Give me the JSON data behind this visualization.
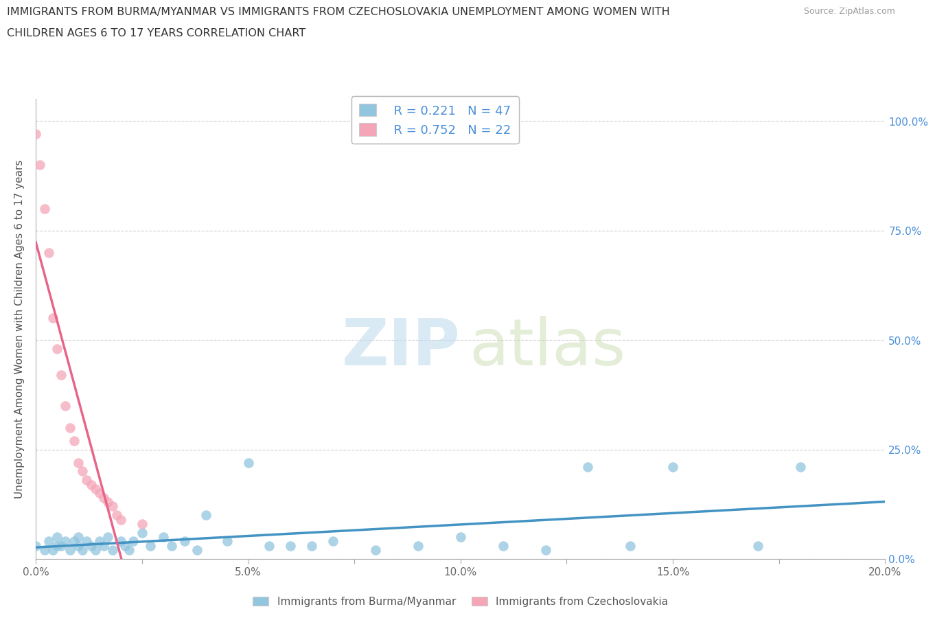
{
  "title_line1": "IMMIGRANTS FROM BURMA/MYANMAR VS IMMIGRANTS FROM CZECHOSLOVAKIA UNEMPLOYMENT AMONG WOMEN WITH",
  "title_line2": "CHILDREN AGES 6 TO 17 YEARS CORRELATION CHART",
  "source": "Source: ZipAtlas.com",
  "ylabel": "Unemployment Among Women with Children Ages 6 to 17 years",
  "xlim": [
    0.0,
    0.2
  ],
  "ylim": [
    -0.02,
    1.05
  ],
  "legend_r1": "R = 0.221",
  "legend_n1": "N = 47",
  "legend_r2": "R = 0.752",
  "legend_n2": "N = 22",
  "color_burma": "#92C5DE",
  "color_czech": "#F4A6B8",
  "color_burma_line": "#4393C3",
  "color_czech_line": "#E8658A",
  "color_czech_line_dashed": "#E8658A",
  "background_color": "#FFFFFF",
  "grid_color": "#D0D0D0",
  "right_tick_color": "#4A90D9",
  "burma_x": [
    0.0,
    0.002,
    0.003,
    0.004,
    0.005,
    0.005,
    0.006,
    0.007,
    0.008,
    0.009,
    0.01,
    0.01,
    0.011,
    0.012,
    0.013,
    0.014,
    0.015,
    0.016,
    0.017,
    0.018,
    0.02,
    0.021,
    0.022,
    0.023,
    0.025,
    0.027,
    0.03,
    0.032,
    0.035,
    0.038,
    0.04,
    0.045,
    0.05,
    0.055,
    0.06,
    0.065,
    0.07,
    0.08,
    0.09,
    0.1,
    0.11,
    0.12,
    0.13,
    0.14,
    0.15,
    0.17,
    0.18
  ],
  "burma_y": [
    0.03,
    0.02,
    0.04,
    0.02,
    0.03,
    0.05,
    0.03,
    0.04,
    0.02,
    0.04,
    0.03,
    0.05,
    0.02,
    0.04,
    0.03,
    0.02,
    0.04,
    0.03,
    0.05,
    0.02,
    0.04,
    0.03,
    0.02,
    0.04,
    0.06,
    0.03,
    0.05,
    0.03,
    0.04,
    0.02,
    0.1,
    0.04,
    0.22,
    0.03,
    0.03,
    0.03,
    0.04,
    0.02,
    0.03,
    0.05,
    0.03,
    0.02,
    0.21,
    0.03,
    0.21,
    0.03,
    0.21
  ],
  "czech_x": [
    0.0,
    0.001,
    0.002,
    0.003,
    0.004,
    0.005,
    0.006,
    0.007,
    0.008,
    0.009,
    0.01,
    0.011,
    0.012,
    0.013,
    0.014,
    0.015,
    0.016,
    0.017,
    0.018,
    0.019,
    0.02,
    0.025
  ],
  "czech_y": [
    0.97,
    0.9,
    0.8,
    0.7,
    0.55,
    0.48,
    0.42,
    0.35,
    0.3,
    0.27,
    0.22,
    0.2,
    0.18,
    0.17,
    0.16,
    0.15,
    0.14,
    0.13,
    0.12,
    0.1,
    0.09,
    0.08
  ],
  "xtick_positions": [
    0.0,
    0.025,
    0.05,
    0.075,
    0.1,
    0.125,
    0.15,
    0.175,
    0.2
  ],
  "xtick_labels": [
    "0.0%",
    "",
    "5.0%",
    "",
    "10.0%",
    "",
    "15.0%",
    "",
    "20.0%"
  ],
  "ytick_positions": [
    0.0,
    0.25,
    0.5,
    0.75,
    1.0
  ],
  "ytick_labels_right": [
    "0.0%",
    "25.0%",
    "50.0%",
    "75.0%",
    "100.0%"
  ]
}
